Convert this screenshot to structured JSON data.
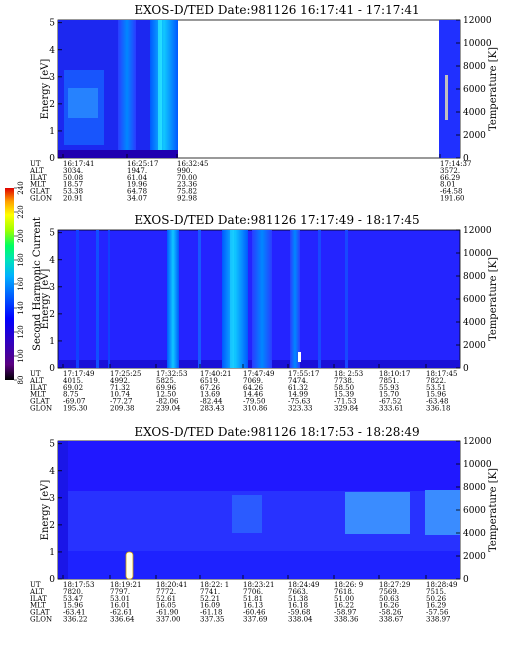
{
  "colors": {
    "background": "#2020ff",
    "colorbar": [
      "#000000",
      "#5a0080",
      "#0000ff",
      "#0050ff",
      "#00a8ff",
      "#00e0c0",
      "#00ff60",
      "#a0ff00",
      "#ffff00",
      "#ffa000",
      "#ff3000",
      "#d00000"
    ]
  },
  "colorbar": {
    "label": "Second Harmonic Current",
    "ticks": [
      "80",
      "100",
      "120",
      "140",
      "160",
      "180",
      "200",
      "220",
      "240"
    ]
  },
  "orbit_row_labels": [
    "UT",
    "ALT",
    "ILAT",
    "MLT",
    "GLAT",
    "GLON"
  ],
  "panels": [
    {
      "title": "EXOS-D/TED  Date:981126  16:17:41 - 17:17:41",
      "ylabel": "Energy [eV]",
      "y2label": "Temperature [K]",
      "yticks": [
        "0",
        "1",
        "2",
        "3",
        "4",
        "5"
      ],
      "y2ticks": [
        "0",
        "2000",
        "4000",
        "6000",
        "8000",
        "10000",
        "12000"
      ],
      "orbit_columns": [
        [
          "16:17:41",
          "3034.",
          "50.08",
          "18.57",
          "53.38",
          "20.91"
        ],
        [
          "16:25:17",
          "1947.",
          "61.04",
          "19.96",
          "64.78",
          "34.07"
        ],
        [
          "16:32:45",
          "990.",
          "70.00",
          "23.36",
          "75.82",
          "92.98"
        ],
        [
          "17:14:37",
          "3572.",
          "66.29",
          "8.01",
          "-64.58",
          "191.60"
        ]
      ]
    },
    {
      "title": "EXOS-D/TED  Date:981126  17:17:49 - 18:17:45",
      "ylabel": "Energy [eV]",
      "y2label": "Temperature [K]",
      "yticks": [
        "0",
        "1",
        "2",
        "3",
        "4",
        "5"
      ],
      "y2ticks": [
        "0",
        "2000",
        "4000",
        "6000",
        "8000",
        "10000",
        "12000"
      ],
      "orbit_columns": [
        [
          "17:17:49",
          "4015.",
          "69.02",
          "8.75",
          "-69.07",
          "195.30"
        ],
        [
          "17:25:25",
          "4992.",
          "71.32",
          "10.74",
          "-77.27",
          "209.38"
        ],
        [
          "17:32:53",
          "5825.",
          "69.96",
          "12.50",
          "-82.06",
          "239.04"
        ],
        [
          "17:40:21",
          "6519.",
          "67.26",
          "13.69",
          "-82.44",
          "283.43"
        ],
        [
          "17:47:49",
          "7069.",
          "64.26",
          "14.46",
          "-79.50",
          "310.86"
        ],
        [
          "17:55:17",
          "7474.",
          "61.32",
          "14.99",
          "-75.63",
          "323.33"
        ],
        [
          "18: 2:53",
          "7738.",
          "58.50",
          "15.39",
          "-71.53",
          "329.84"
        ],
        [
          "18:10:17",
          "7851.",
          "55.93",
          "15.70",
          "-67.52",
          "333.61"
        ],
        [
          "18:17:45",
          "7822.",
          "53.51",
          "15.96",
          "-63.48",
          "336.18"
        ]
      ]
    },
    {
      "title": "EXOS-D/TED  Date:981126  18:17:53 - 18:28:49",
      "ylabel": "Energy [eV]",
      "y2label": "Temperature [K]",
      "yticks": [
        "0",
        "1",
        "2",
        "3",
        "4",
        "5"
      ],
      "y2ticks": [
        "0",
        "2000",
        "4000",
        "6000",
        "8000",
        "10000",
        "12000"
      ],
      "orbit_columns": [
        [
          "18:17:53",
          "7820.",
          "53.47",
          "15.96",
          "-63.41",
          "336.22"
        ],
        [
          "18:19:21",
          "7797.",
          "53.01",
          "16.01",
          "-62.61",
          "336.64"
        ],
        [
          "18:20:41",
          "7772.",
          "52.61",
          "16.05",
          "-61.90",
          "337.00"
        ],
        [
          "18:22: 1",
          "7741.",
          "52.21",
          "16.09",
          "-61.18",
          "337.35"
        ],
        [
          "18:23:21",
          "7706.",
          "51.81",
          "16.13",
          "-60.46",
          "337.69"
        ],
        [
          "18:24:49",
          "7663.",
          "51.38",
          "16.18",
          "-59.68",
          "338.04"
        ],
        [
          "18:26: 9",
          "7618.",
          "51.00",
          "16.22",
          "-58.97",
          "338.36"
        ],
        [
          "18:27:29",
          "7569.",
          "50.63",
          "16.26",
          "-58.26",
          "338.67"
        ],
        [
          "18:28:49",
          "7515.",
          "50.26",
          "16.29",
          "-57.56",
          "338.97"
        ]
      ]
    }
  ]
}
